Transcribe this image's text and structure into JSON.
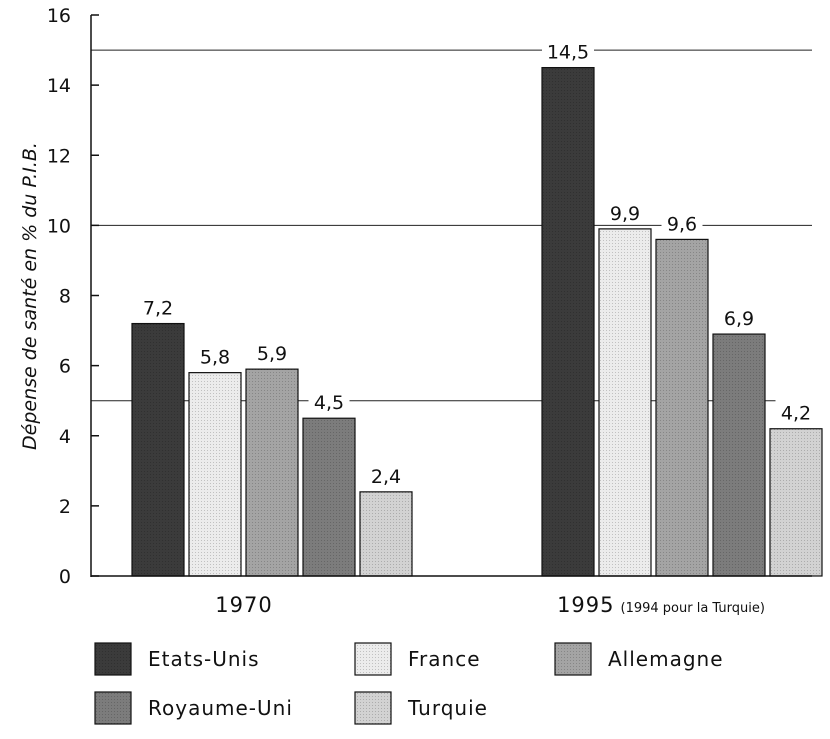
{
  "chart_data": {
    "type": "bar",
    "ylabel": "Dépense de santé en % du P.I.B.",
    "ylim": [
      0,
      16
    ],
    "yticks": [
      "0",
      "2",
      "4",
      "6",
      "8",
      "10",
      "12",
      "14",
      "16"
    ],
    "gridlines": [
      5,
      10,
      15
    ],
    "legend_position": "bottom",
    "categories": [
      {
        "label": "1970",
        "sublabel": ""
      },
      {
        "label": "1995",
        "sublabel": "(1994 pour la Turquie)"
      }
    ],
    "series": [
      {
        "name": "Etats-Unis",
        "color": "#3b3b3b",
        "values": [
          7.2,
          14.5
        ],
        "labels": [
          "7,2",
          "14,5"
        ]
      },
      {
        "name": "France",
        "color": "#ececec",
        "values": [
          5.8,
          9.9
        ],
        "labels": [
          "5,8",
          "9,9"
        ]
      },
      {
        "name": "Allemagne",
        "color": "#a4a4a4",
        "values": [
          5.9,
          9.6
        ],
        "labels": [
          "5,9",
          "9,6"
        ]
      },
      {
        "name": "Royaume-Uni",
        "color": "#7c7c7c",
        "values": [
          4.5,
          6.9
        ],
        "labels": [
          "4,5",
          "6,9"
        ]
      },
      {
        "name": "Turquie",
        "color": "#d2d2d2",
        "values": [
          2.4,
          4.2
        ],
        "labels": [
          "2,4",
          "4,2"
        ]
      }
    ]
  }
}
